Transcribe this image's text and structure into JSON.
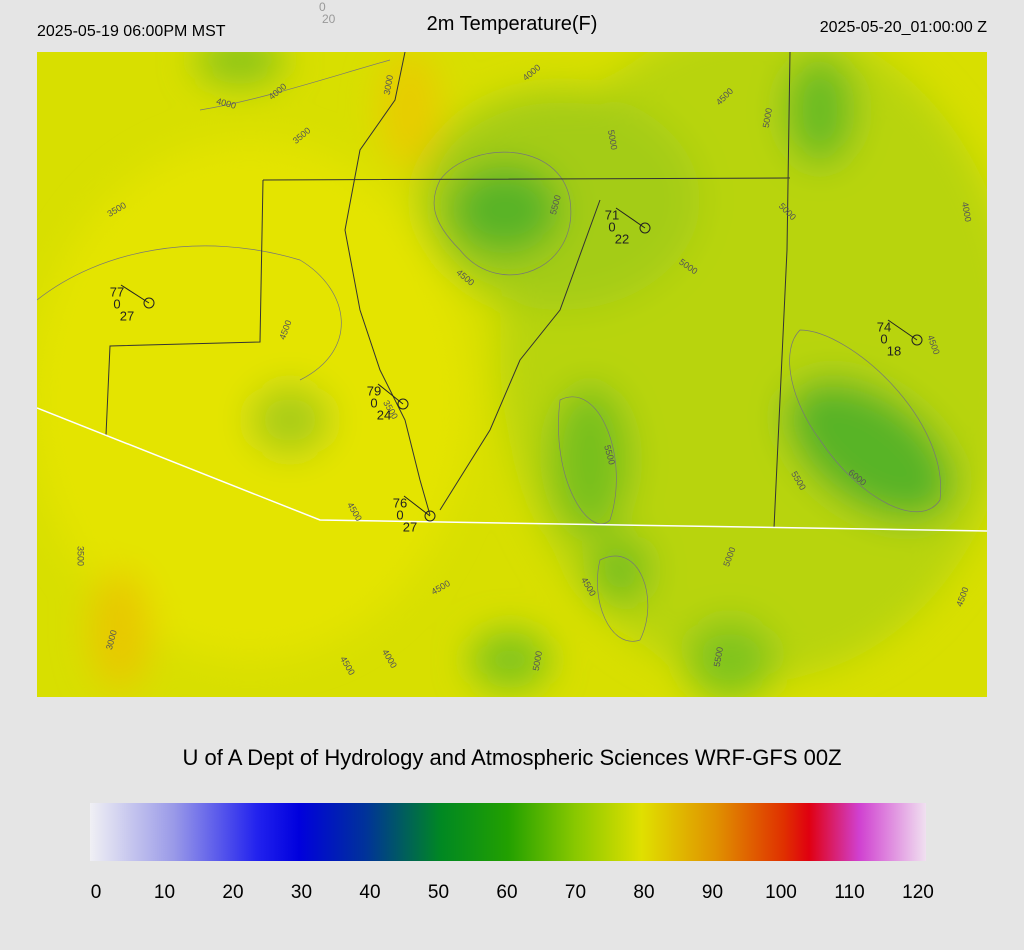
{
  "header": {
    "left": "2025-05-19 06:00PM MST",
    "title": "2m Temperature(F)",
    "right": "2025-05-20_01:00:00 Z",
    "top_small": [
      "0",
      "20"
    ]
  },
  "contour_labels": [
    "4000",
    "4000",
    "3000",
    "3500",
    "4000",
    "4500",
    "5000",
    "5000",
    "3500",
    "5500",
    "5000",
    "4000",
    "5000",
    "4500",
    "4500",
    "4500",
    "3500",
    "5500",
    "6000",
    "5500",
    "4500",
    "3500",
    "5000",
    "4500",
    "4500",
    "4500",
    "3000",
    "4500",
    "4000",
    "5000",
    "5500"
  ],
  "stations": [
    [
      "77",
      "0",
      "27"
    ],
    [
      "71",
      "0",
      "22"
    ],
    [
      "74",
      "0",
      "18"
    ],
    [
      "79",
      "0",
      "24"
    ],
    [
      "76",
      "0",
      "27"
    ]
  ],
  "credit": "U of A Dept of Hydrology and Atmospheric Sciences WRF-GFS 00Z",
  "colorbar": {
    "range": [
      0,
      120
    ],
    "ticks": [
      0,
      10,
      20,
      30,
      40,
      50,
      60,
      70,
      80,
      90,
      100,
      110,
      120
    ]
  }
}
